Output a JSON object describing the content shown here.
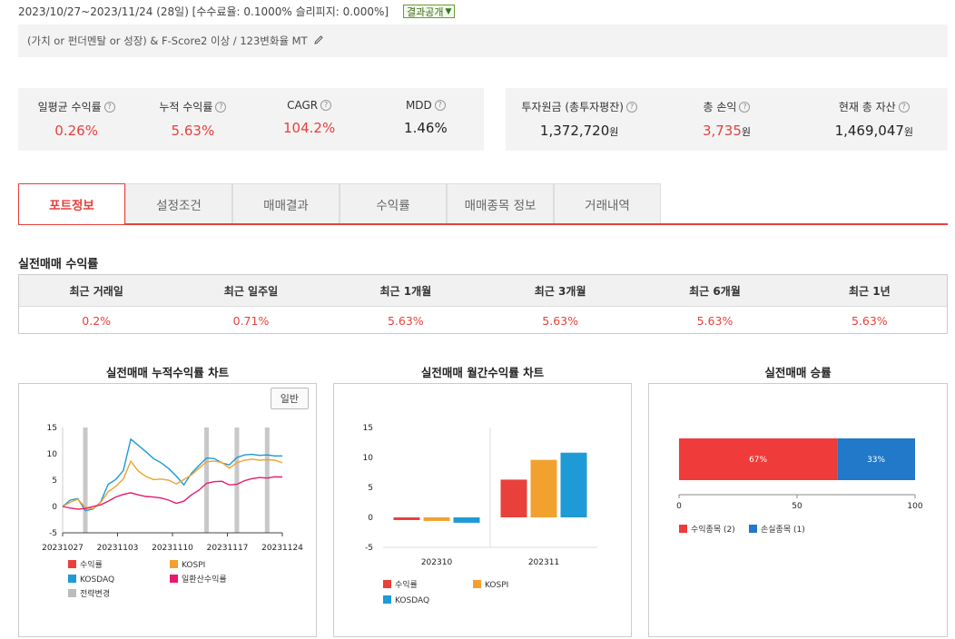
{
  "header": {
    "period": "2023/10/27~2023/11/24 (28일) [수수료율: 0.1000% 슬리피지: 0.000%]",
    "publish_label": "결과공개",
    "strategy": "(가치 or 펀더멘탈 or 성장) & F-Score2 이상 / 123변화율 MT"
  },
  "summary_left": [
    {
      "label": "일평균 수익률",
      "value": "0.26%"
    },
    {
      "label": "누적 수익률",
      "value": "5.63%"
    },
    {
      "label": "CAGR",
      "value": "104.2%"
    },
    {
      "label": "MDD",
      "value": "1.46%"
    }
  ],
  "summary_right": [
    {
      "label": "투자원금 (총투자평잔)",
      "value": "1,372,720",
      "unit": "원"
    },
    {
      "label": "총 손익",
      "value": "3,735",
      "unit": "원"
    },
    {
      "label": "현재 총 자산",
      "value": "1,469,047",
      "unit": "원"
    }
  ],
  "tabs": [
    "포트정보",
    "설정조건",
    "매매결과",
    "수익률",
    "매매종목 정보",
    "거래내역"
  ],
  "returns_section": {
    "title": "실전매매 수익률",
    "headers": [
      "최근 거래일",
      "최근 일주일",
      "최근 1개월",
      "최근 3개월",
      "최근 6개월",
      "최근 1년"
    ],
    "values": [
      "0.2%",
      "0.71%",
      "5.63%",
      "5.63%",
      "5.63%",
      "5.63%"
    ]
  },
  "colors": {
    "red": "#e8403b",
    "orange": "#f2a12e",
    "blue": "#1e9ad6",
    "pink": "#e8196e",
    "gray": "#bbbbbb",
    "win_red": "#f03b3b",
    "lose_blue": "#2278c9"
  },
  "charts_meta": {
    "cumulative_title": "실전매매 누적수익률 차트",
    "normal_button": "일반",
    "monthly_title": "실전매매 월간수익률 차트",
    "winrate_title": "실전매매 승률"
  },
  "chart_data": [
    {
      "type": "line",
      "title": "실전매매 누적수익률 차트",
      "x_ticks": [
        "20231027",
        "20231103",
        "20231110",
        "20231117",
        "20231124"
      ],
      "ylim": [
        -5,
        15
      ],
      "y_ticks": [
        -5,
        0,
        5,
        10,
        15
      ],
      "strategy_change_days": [
        3,
        19,
        23,
        27
      ],
      "series": [
        {
          "name": "수익률",
          "values": [
            0,
            -0.3,
            -0.5,
            -0.4,
            0,
            0.3,
            1,
            1.8,
            2.3,
            2.6,
            2.2,
            1.9,
            1.8,
            1.6,
            1.2,
            0.6,
            1,
            2.2,
            3.1,
            4.4,
            4.7,
            4.8,
            4.1,
            4.2,
            4.9,
            5.3,
            5.5,
            5.4,
            5.63,
            5.6
          ]
        },
        {
          "name": "KOSPI",
          "values": [
            0,
            0.8,
            1.4,
            -0.2,
            -0.4,
            0.7,
            2.8,
            3.8,
            5.2,
            8.6,
            6.7,
            5.7,
            5.1,
            5.2,
            5.0,
            4.3,
            5.1,
            6.0,
            7.3,
            8.5,
            8.6,
            8.4,
            7.3,
            8.3,
            8.8,
            9.0,
            8.8,
            8.9,
            8.8,
            8.3
          ]
        },
        {
          "name": "KOSDAQ",
          "values": [
            0,
            1.2,
            1.5,
            -0.8,
            -0.5,
            0.8,
            4.2,
            5.1,
            6.8,
            12.8,
            11.6,
            10.4,
            9.1,
            8.3,
            7.2,
            5.8,
            4.1,
            6.3,
            7.8,
            9.2,
            9.1,
            8.3,
            7.9,
            9.3,
            9.8,
            9.9,
            9.7,
            9.8,
            9.6,
            9.6
          ]
        },
        {
          "name": "일환산수익률",
          "values": []
        },
        {
          "name": "전략변경",
          "values": []
        }
      ]
    },
    {
      "type": "bar",
      "title": "실전매매 월간수익률 차트",
      "categories": [
        "202310",
        "202311"
      ],
      "ylim": [
        -5,
        15
      ],
      "y_ticks": [
        -5,
        0,
        5,
        10,
        15
      ],
      "series": [
        {
          "name": "수익률",
          "values": [
            -0.4,
            6.3
          ]
        },
        {
          "name": "KOSPI",
          "values": [
            -0.6,
            9.6
          ]
        },
        {
          "name": "KOSDAQ",
          "values": [
            -0.9,
            10.8
          ]
        }
      ]
    },
    {
      "type": "bar",
      "title": "실전매매 승률",
      "x_ticks": [
        0,
        50,
        100
      ],
      "xlim": [
        0,
        100
      ],
      "series": [
        {
          "name": "수익종목 (2)",
          "values": [
            67
          ],
          "label": "67%"
        },
        {
          "name": "손실종목 (1)",
          "values": [
            33
          ],
          "label": "33%"
        }
      ]
    }
  ]
}
